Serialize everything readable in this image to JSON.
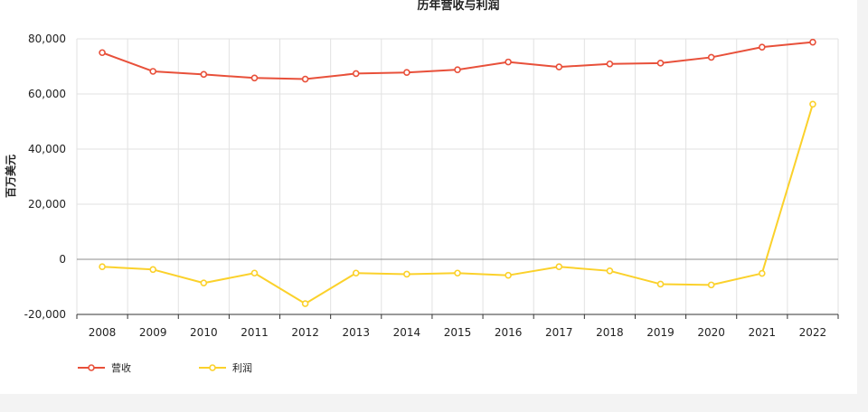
{
  "chart_data": {
    "type": "line",
    "title": "历年营收与利润",
    "xlabel": "",
    "ylabel": "百万美元",
    "categories": [
      "2008",
      "2009",
      "2010",
      "2011",
      "2012",
      "2013",
      "2014",
      "2015",
      "2016",
      "2017",
      "2018",
      "2019",
      "2020",
      "2021",
      "2022"
    ],
    "ylim": [
      -20000,
      80000
    ],
    "yticks": [
      -20000,
      0,
      20000,
      40000,
      60000,
      80000
    ],
    "ytick_labels": [
      "-20,000",
      "0",
      "20,000",
      "40,000",
      "60,000",
      "80,000"
    ],
    "grid": true,
    "legend_position": "bottom-left",
    "series": [
      {
        "name": "营收",
        "color": "#e8503a",
        "values": [
          75000,
          68200,
          67100,
          65800,
          65400,
          67400,
          67800,
          68800,
          71600,
          69800,
          70900,
          71200,
          73300,
          77000,
          78800
        ]
      },
      {
        "name": "利润",
        "color": "#fbd12b",
        "values": [
          -2700,
          -3700,
          -8600,
          -5000,
          -16100,
          -5000,
          -5400,
          -5000,
          -5800,
          -2700,
          -4200,
          -9000,
          -9300,
          -5100,
          56300
        ]
      }
    ]
  }
}
